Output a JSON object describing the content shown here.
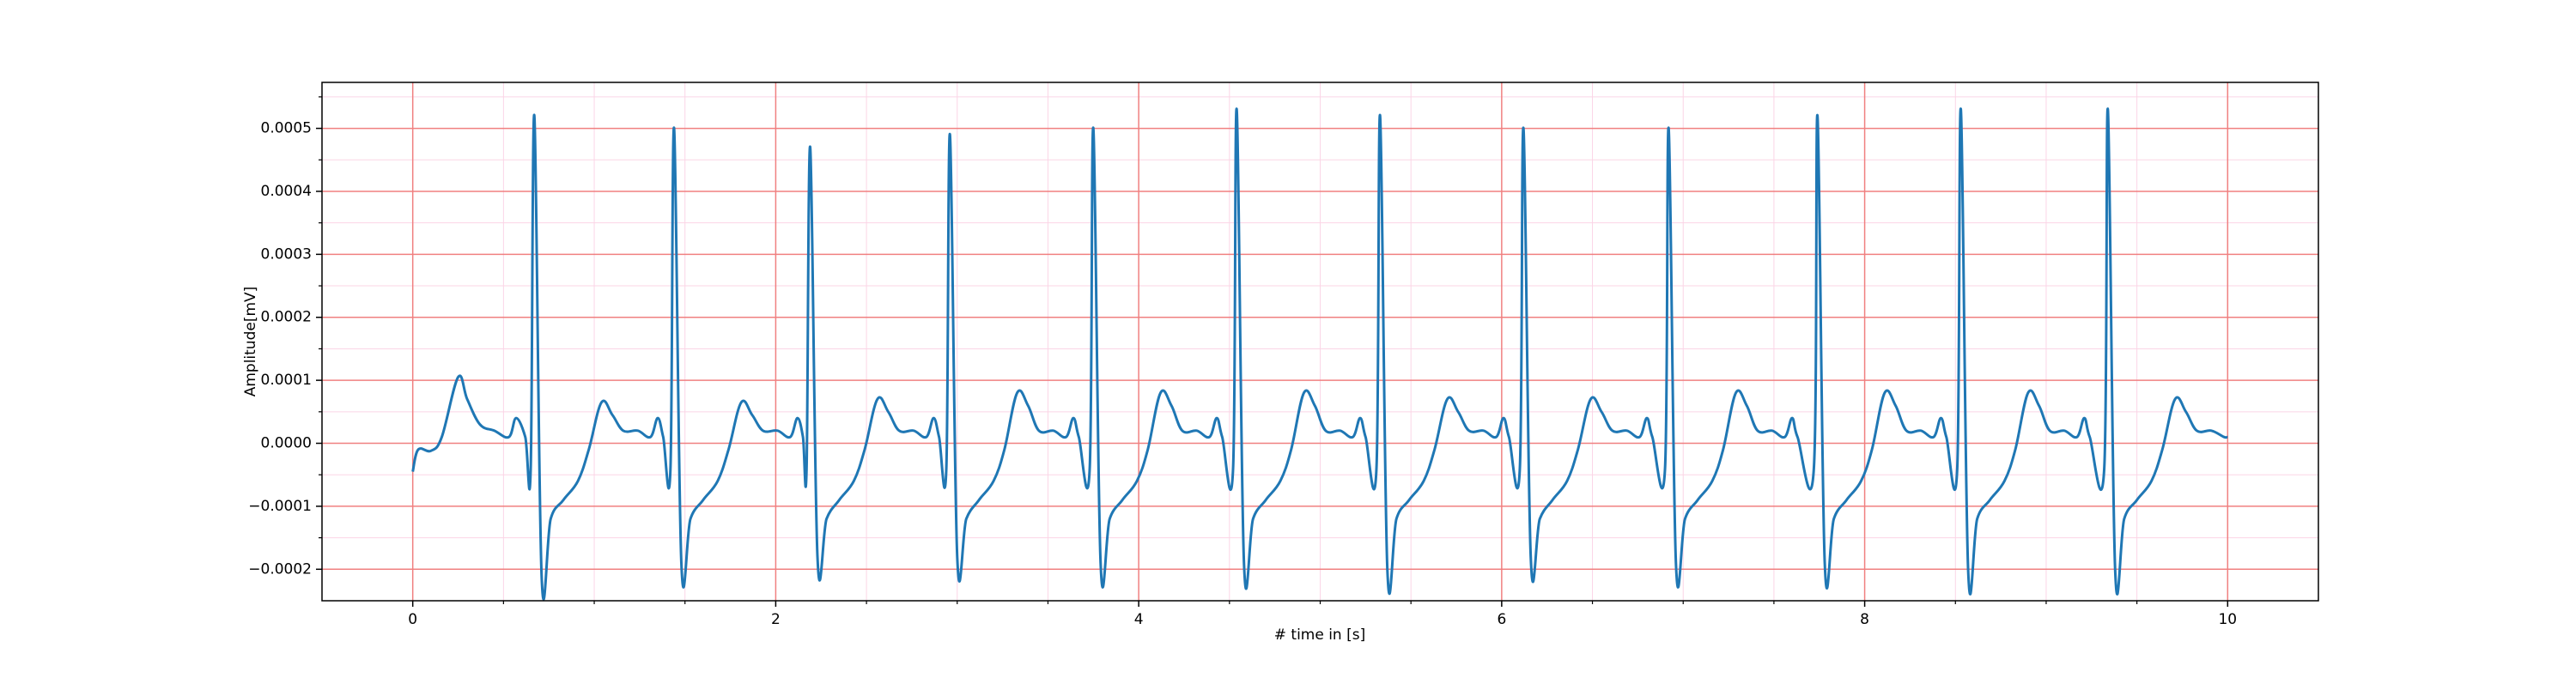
{
  "chart_data": {
    "type": "line",
    "xlabel": "# time in [s]",
    "ylabel": "Amplitude[mV]",
    "xlim": [
      -0.5,
      10.5
    ],
    "ylim": [
      -0.00025,
      0.000573
    ],
    "xticks": [
      0,
      2,
      4,
      6,
      8,
      10
    ],
    "yticks": [
      {
        "value": -0.0002,
        "label": "−0.0002"
      },
      {
        "value": -0.0001,
        "label": "−0.0001"
      },
      {
        "value": 0,
        "label": "0.0000"
      },
      {
        "value": 0.0001,
        "label": "0.0001"
      },
      {
        "value": 0.0002,
        "label": "0.0002"
      },
      {
        "value": 0.0003,
        "label": "0.0003"
      },
      {
        "value": 0.0004,
        "label": "0.0004"
      },
      {
        "value": 0.0005,
        "label": "0.0005"
      }
    ],
    "xminorticks": [
      0.5,
      1,
      1.5,
      2.5,
      3,
      3.5,
      4.5,
      5,
      5.5,
      6.5,
      7,
      7.5,
      8.5,
      9,
      9.5
    ],
    "yminorticks": [
      -0.00015,
      -5e-05,
      5e-05,
      0.00015,
      0.00025,
      0.00035,
      0.00045,
      0.00055
    ],
    "grid": true,
    "minor_grid": true,
    "grid_color": "#f08080",
    "minor_grid_color": "#fbd5e6",
    "series": [
      {
        "color": "#1f77b4",
        "x": [
          0,
          0.03,
          0.1,
          0.16,
          0.25,
          0.3,
          0.37,
          0.45,
          0.53,
          0.57,
          0.62,
          0.65,
          0.67,
          0.71,
          0.76,
          0.83,
          0.91,
          0.97,
          1.04,
          1.1,
          1.16,
          1.24,
          1.31,
          1.35,
          1.38,
          1.42,
          1.44,
          1.48,
          1.53,
          1.6,
          1.68,
          1.74,
          1.81,
          1.87,
          1.93,
          2.01,
          2.08,
          2.12,
          2.15,
          2.17,
          2.19,
          2.23,
          2.28,
          2.35,
          2.43,
          2.49,
          2.56,
          2.62,
          2.68,
          2.76,
          2.83,
          2.87,
          2.9,
          2.94,
          2.96,
          3,
          3.05,
          3.12,
          3.2,
          3.26,
          3.33,
          3.39,
          3.45,
          3.53,
          3.6,
          3.64,
          3.67,
          3.73,
          3.75,
          3.79,
          3.84,
          3.91,
          3.99,
          4.05,
          4.12,
          4.18,
          4.24,
          4.32,
          4.39,
          4.43,
          4.46,
          4.52,
          4.54,
          4.58,
          4.63,
          4.7,
          4.78,
          4.84,
          4.91,
          4.97,
          5.03,
          5.11,
          5.18,
          5.22,
          5.25,
          5.31,
          5.33,
          5.37,
          5.42,
          5.49,
          5.57,
          5.63,
          5.7,
          5.76,
          5.82,
          5.9,
          5.97,
          6.01,
          6.04,
          6.1,
          6.12,
          6.16,
          6.21,
          6.28,
          6.36,
          6.42,
          6.49,
          6.55,
          6.61,
          6.69,
          6.76,
          6.8,
          6.83,
          6.9,
          6.92,
          6.96,
          7.01,
          7.08,
          7.16,
          7.22,
          7.29,
          7.35,
          7.41,
          7.49,
          7.56,
          7.6,
          7.63,
          7.72,
          7.74,
          7.78,
          7.83,
          7.9,
          7.98,
          8.04,
          8.11,
          8.17,
          8.23,
          8.31,
          8.38,
          8.42,
          8.45,
          8.51,
          8.53,
          8.57,
          8.62,
          8.69,
          8.77,
          8.83,
          8.9,
          8.96,
          9.02,
          9.1,
          9.17,
          9.21,
          9.24,
          9.32,
          9.34,
          9.38,
          9.43,
          9.5,
          9.58,
          9.64,
          9.71,
          9.77,
          9.83,
          9.91,
          9.98,
          10
        ],
        "values": [
          -4.5e-05,
          -1e-05,
          -1.2e-05,
          1e-05,
          0.000105,
          7e-05,
          3e-05,
          2e-05,
          1e-05,
          4e-05,
          1e-05,
          -4e-05,
          0.00052,
          -0.00021,
          -0.00012,
          -9e-05,
          -6e-05,
          -1e-05,
          6.5e-05,
          4.5e-05,
          2e-05,
          2e-05,
          1e-05,
          4e-05,
          1e-05,
          -4e-05,
          0.0005,
          -0.00019,
          -0.00012,
          -9e-05,
          -6e-05,
          -1e-05,
          6.5e-05,
          4.5e-05,
          2e-05,
          2e-05,
          1e-05,
          4e-05,
          1e-05,
          -4e-05,
          0.00047,
          -0.00018,
          -0.00012,
          -9e-05,
          -6e-05,
          -1e-05,
          7e-05,
          5e-05,
          2e-05,
          2e-05,
          1e-05,
          4e-05,
          1e-05,
          -4e-05,
          0.00049,
          -0.00018,
          -0.00012,
          -9e-05,
          -6e-05,
          -1e-05,
          8e-05,
          6e-05,
          2e-05,
          2e-05,
          1e-05,
          4e-05,
          1e-05,
          -4e-05,
          0.0005,
          -0.00019,
          -0.00012,
          -9e-05,
          -6e-05,
          -1e-05,
          8e-05,
          6e-05,
          2e-05,
          2e-05,
          1e-05,
          4e-05,
          1e-05,
          -4e-05,
          0.00053,
          -0.00019,
          -0.00012,
          -9e-05,
          -6e-05,
          -1e-05,
          8e-05,
          6e-05,
          2e-05,
          2e-05,
          1e-05,
          4e-05,
          1e-05,
          -4e-05,
          0.00052,
          -0.0002,
          -0.00012,
          -9e-05,
          -6e-05,
          -1e-05,
          7e-05,
          5e-05,
          2e-05,
          2e-05,
          1e-05,
          4e-05,
          1e-05,
          -4e-05,
          0.0005,
          -0.00018,
          -0.00012,
          -9e-05,
          -6e-05,
          -1e-05,
          7e-05,
          5e-05,
          2e-05,
          2e-05,
          1e-05,
          4e-05,
          1e-05,
          -4e-05,
          0.0005,
          -0.00019,
          -0.00012,
          -9e-05,
          -6e-05,
          -1e-05,
          8e-05,
          6e-05,
          2e-05,
          2e-05,
          1e-05,
          4e-05,
          1e-05,
          -4e-05,
          0.00052,
          -0.00019,
          -0.00012,
          -9e-05,
          -6e-05,
          -1e-05,
          8e-05,
          6e-05,
          2e-05,
          2e-05,
          1e-05,
          4e-05,
          1e-05,
          -4e-05,
          0.00053,
          -0.0002,
          -0.00012,
          -9e-05,
          -6e-05,
          -1e-05,
          8e-05,
          6e-05,
          2e-05,
          2e-05,
          1e-05,
          4e-05,
          1e-05,
          -4e-05,
          0.00053,
          -0.0002,
          -0.00012,
          -9e-05,
          -6e-05,
          -1e-05,
          7e-05,
          5e-05,
          2e-05,
          2e-05,
          1e-05,
          1e-05
        ]
      }
    ]
  }
}
